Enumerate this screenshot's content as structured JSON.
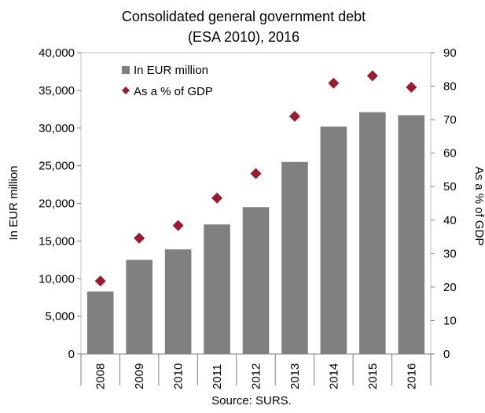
{
  "chart_data": {
    "type": "bar",
    "title": "Consolidated general government debt",
    "subtitle": "(ESA 2010), 2016",
    "source": "Source: SURS.",
    "categories": [
      "2008",
      "2009",
      "2010",
      "2011",
      "2012",
      "2013",
      "2014",
      "2015",
      "2016"
    ],
    "series": [
      {
        "name": "In EUR million",
        "type": "bar",
        "axis": "left",
        "color": "#808080",
        "values": [
          8300,
          12500,
          13900,
          17200,
          19500,
          25500,
          30200,
          32100,
          31700
        ]
      },
      {
        "name": "As a % of GDP",
        "type": "scatter",
        "axis": "right",
        "marker": "diamond",
        "color": "#9b1b30",
        "values": [
          21.8,
          34.6,
          38.4,
          46.6,
          53.9,
          71.0,
          80.9,
          83.1,
          79.7
        ]
      }
    ],
    "ylabel": "In EUR million",
    "y2label": "As a % of GDP",
    "ylim": [
      0,
      40000
    ],
    "y2lim": [
      0,
      90
    ],
    "yticks": [
      "0",
      "5,000",
      "10,000",
      "15,000",
      "20,000",
      "25,000",
      "30,000",
      "35,000",
      "40,000"
    ],
    "y2ticks": [
      "0",
      "10",
      "20",
      "30",
      "40",
      "50",
      "60",
      "70",
      "80",
      "90"
    ],
    "grid": false,
    "legend": "top-left"
  }
}
